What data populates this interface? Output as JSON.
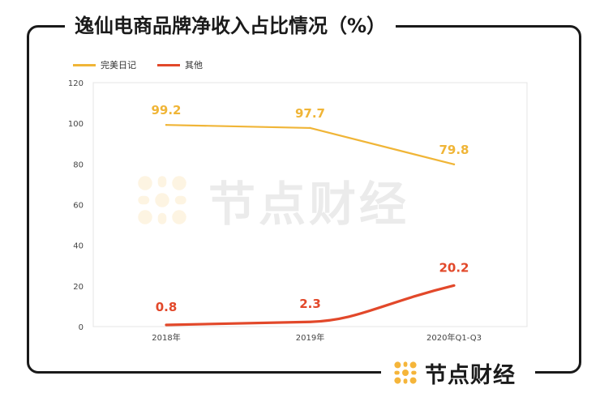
{
  "title": "逸仙电商品牌净收入占比情况（%）",
  "brand": {
    "name": "节点财经",
    "accent": "#F5B53A"
  },
  "watermark": {
    "text": "节点财经"
  },
  "chart_data": {
    "type": "line",
    "title": "逸仙电商品牌净收入占比情况（%）",
    "categories": [
      "2018年",
      "2019年",
      "2020年Q1-Q3"
    ],
    "series": [
      {
        "name": "完美日记",
        "values": [
          99.2,
          97.7,
          79.8
        ],
        "labels": [
          "99.2",
          "97.7",
          "79.8"
        ],
        "color": "#F0B537"
      },
      {
        "name": "其他",
        "values": [
          0.8,
          2.3,
          20.2
        ],
        "labels": [
          "0.8",
          "2.3",
          "20.2"
        ],
        "color": "#E2482A"
      }
    ],
    "ylim": [
      0,
      120
    ],
    "yticks": [
      "0",
      "20",
      "40",
      "60",
      "80",
      "100",
      "120"
    ],
    "xlabel": "",
    "ylabel": "",
    "grid": false,
    "legend": "top-left"
  }
}
